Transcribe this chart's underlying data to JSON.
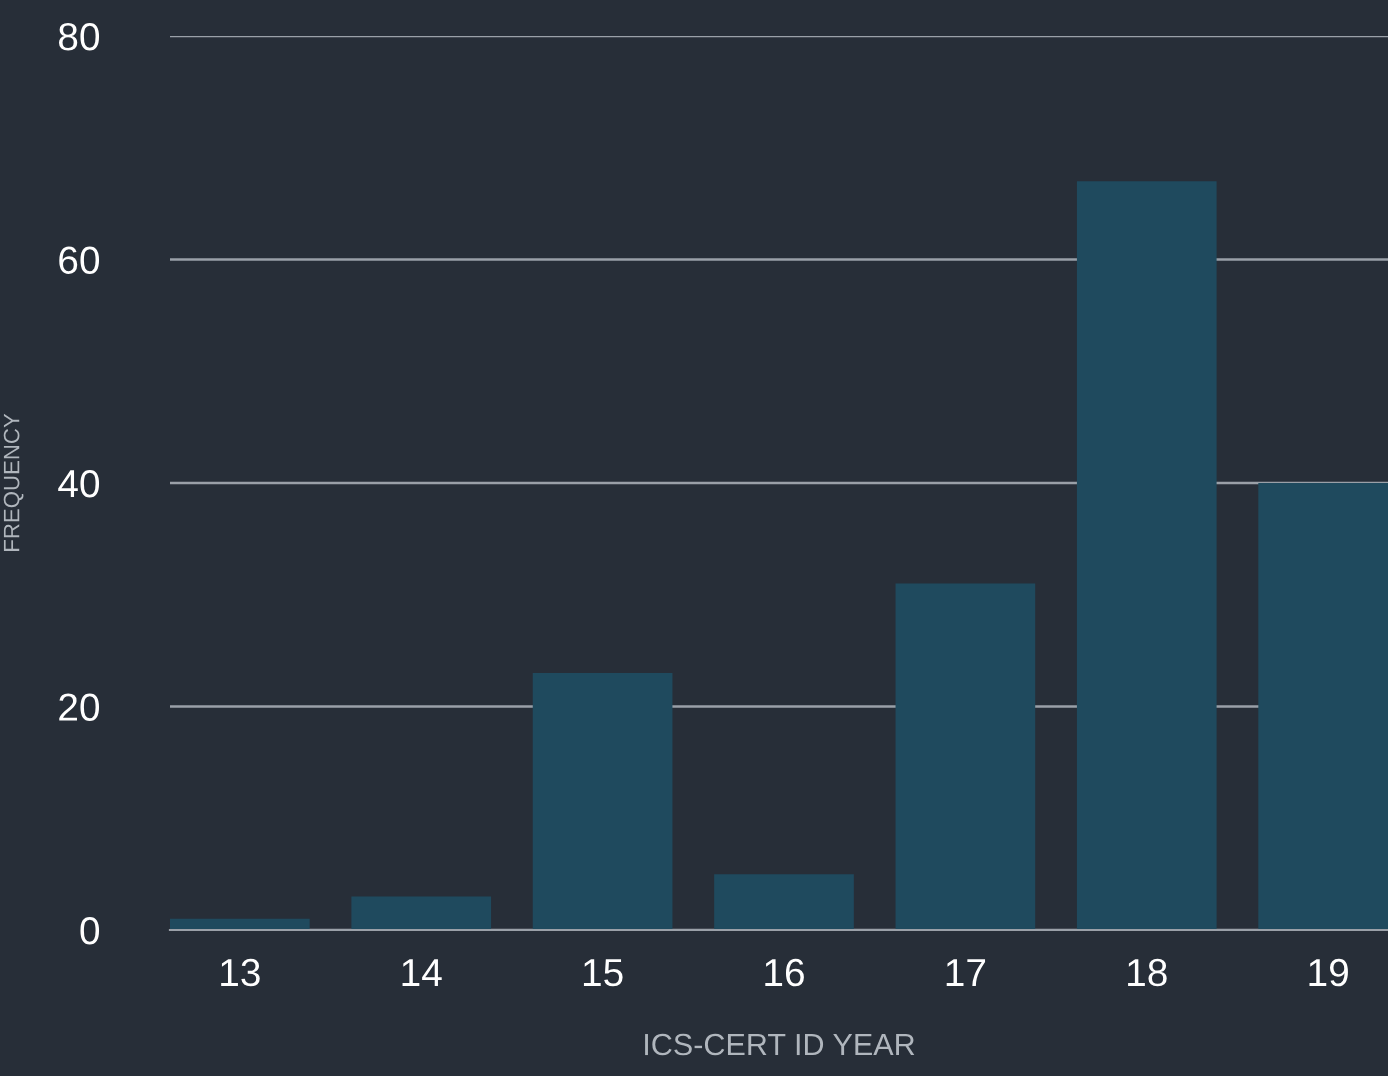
{
  "chart_data": {
    "type": "bar",
    "xlabel": "ICS-CERT ID YEAR",
    "ylabel": "FREQUENCY",
    "categories": [
      "13",
      "14",
      "15",
      "16",
      "17",
      "18",
      "19"
    ],
    "values": [
      1,
      3,
      23,
      5,
      31,
      67,
      40
    ],
    "color": "#1f4a5e",
    "ylim": [
      0,
      80
    ],
    "yticks": [
      0,
      20,
      40,
      60,
      80
    ],
    "grid": "y"
  }
}
